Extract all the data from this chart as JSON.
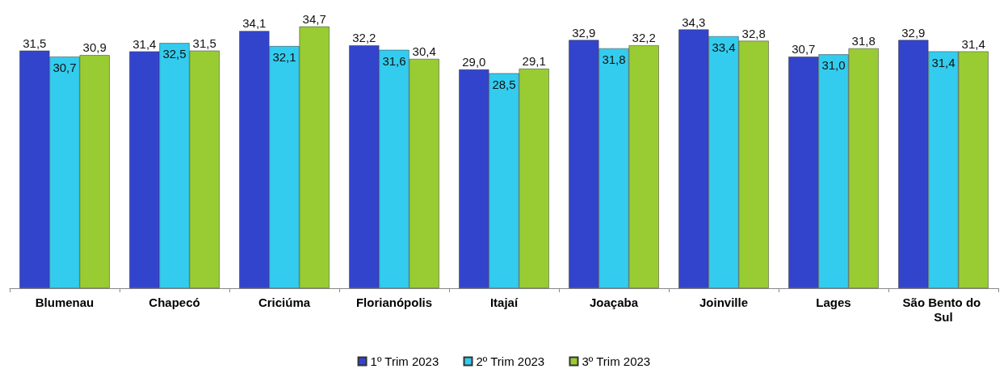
{
  "chart_data": {
    "type": "bar",
    "categories": [
      "Blumenau",
      "Chapecó",
      "Criciúma",
      "Florianópolis",
      "Itajaí",
      "Joaçaba",
      "Joinville",
      "Lages",
      "São Bento do Sul"
    ],
    "series": [
      {
        "name": "1º Trim 2023",
        "color": "#3344cc",
        "values": [
          31.5,
          31.4,
          34.1,
          32.2,
          29.0,
          32.9,
          34.3,
          30.7,
          32.9
        ],
        "value_labels": [
          "31,5",
          "31,4",
          "34,1",
          "32,2",
          "29,0",
          "32,9",
          "34,3",
          "30,7",
          "32,9"
        ]
      },
      {
        "name": "2º Trim 2023",
        "color": "#33ccee",
        "values": [
          30.7,
          32.5,
          32.1,
          31.6,
          28.5,
          31.8,
          33.4,
          31.0,
          31.4
        ],
        "value_labels": [
          "30,7",
          "32,5",
          "32,1",
          "31,6",
          "28,5",
          "31,8",
          "33,4",
          "31,0",
          "31,4"
        ]
      },
      {
        "name": "3º Trim 2023",
        "color": "#99cc33",
        "values": [
          30.9,
          31.5,
          34.7,
          30.4,
          29.1,
          32.2,
          32.8,
          31.8,
          31.4
        ],
        "value_labels": [
          "30,9",
          "31,5",
          "34,7",
          "30,4",
          "29,1",
          "32,2",
          "32,8",
          "31,8",
          "31,4"
        ]
      }
    ],
    "grid": false,
    "legend": "bottom",
    "tick_labels": "x"
  }
}
